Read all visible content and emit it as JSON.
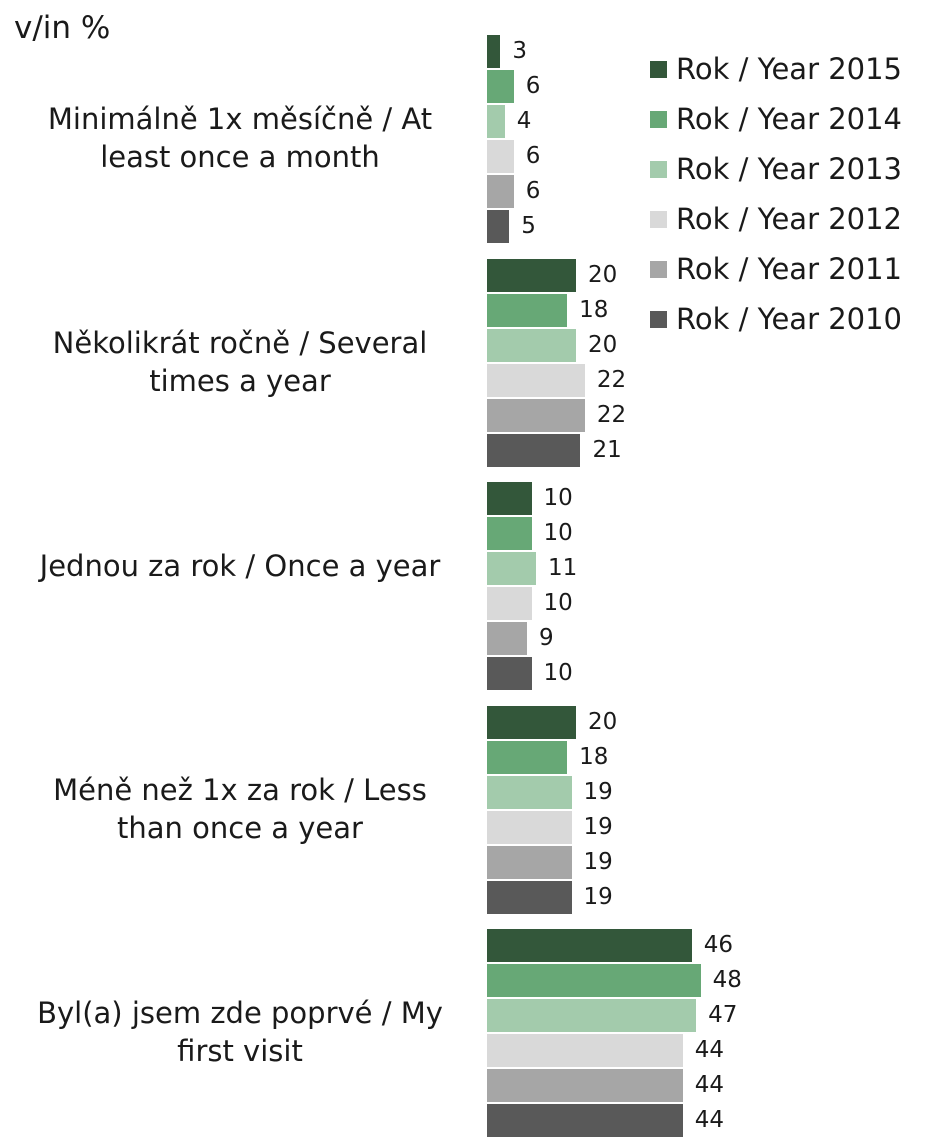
{
  "chart_data": {
    "type": "bar",
    "orientation": "horizontal",
    "title": "v/in %",
    "categories": [
      "Minimálně 1x měsíčně / At least once a month",
      "Několikrát ročně / Several times a year",
      "Jednou za rok / Once a year",
      "Méně než 1x za rok / Less than once a year",
      "Byl(a) jsem zde poprvé / My first visit"
    ],
    "series": [
      {
        "name": "Rok / Year 2015",
        "color": "#33573a",
        "values": [
          3,
          20,
          10,
          20,
          46
        ]
      },
      {
        "name": "Rok / Year 2014",
        "color": "#67a876",
        "values": [
          6,
          18,
          10,
          18,
          48
        ]
      },
      {
        "name": "Rok / Year 2013",
        "color": "#a3cbac",
        "values": [
          4,
          20,
          11,
          19,
          47
        ]
      },
      {
        "name": "Rok / Year 2012",
        "color": "#d9d9d9",
        "values": [
          6,
          22,
          10,
          19,
          44
        ]
      },
      {
        "name": "Rok / Year 2011",
        "color": "#a6a6a6",
        "values": [
          6,
          22,
          9,
          19,
          44
        ]
      },
      {
        "name": "Rok / Year 2010",
        "color": "#595959",
        "values": [
          5,
          21,
          10,
          19,
          44
        ]
      }
    ],
    "legend": "top-right"
  }
}
